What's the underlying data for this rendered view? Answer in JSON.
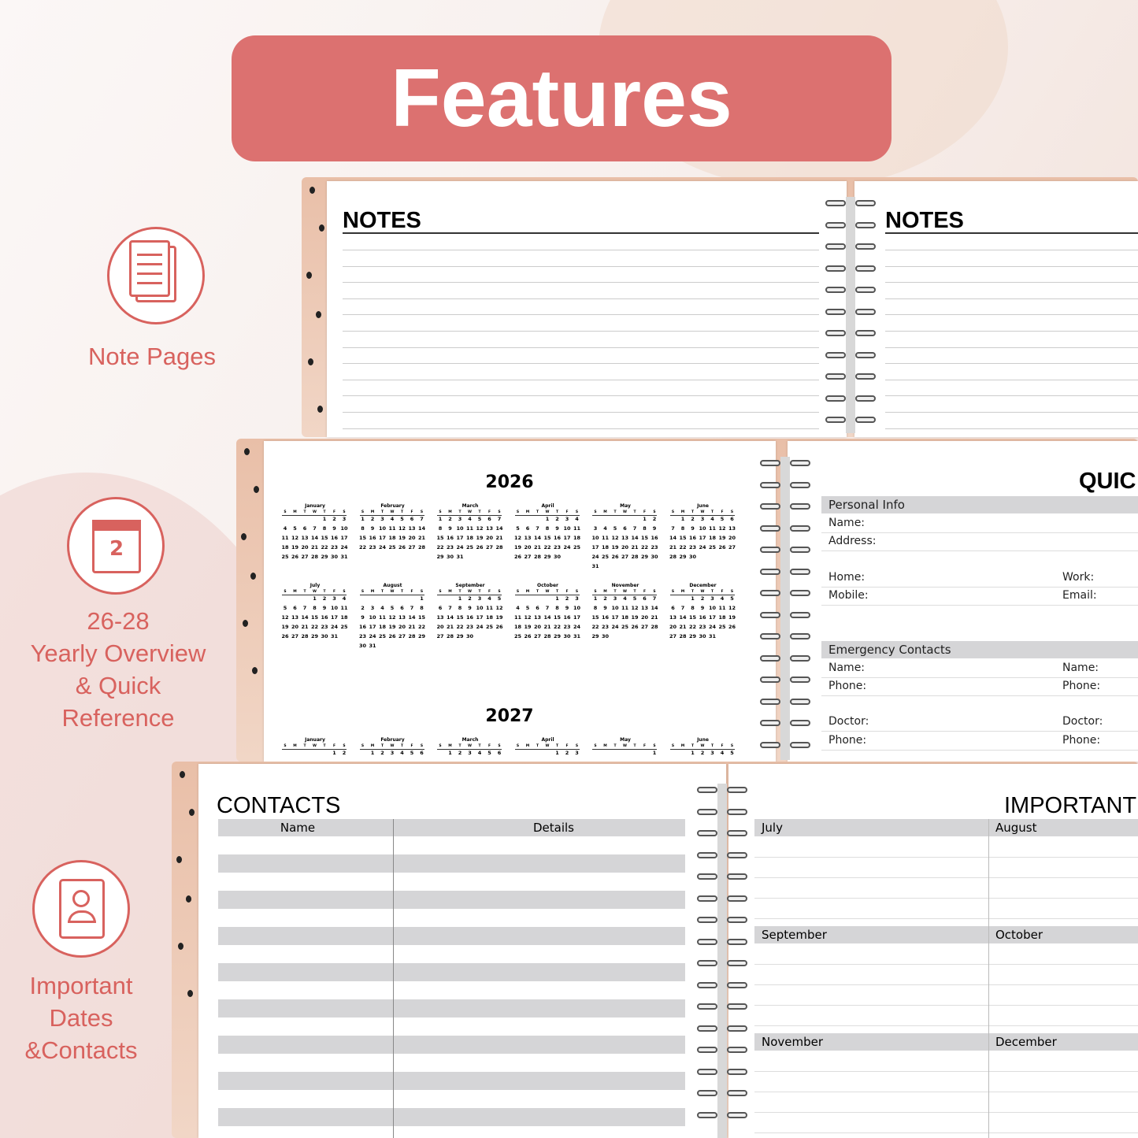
{
  "header": {
    "title": "Features"
  },
  "features": [
    {
      "label": [
        "Note Pages"
      ]
    },
    {
      "label": [
        "26-28",
        "Yearly Overview",
        "& Quick",
        "Reference"
      ],
      "icon_text": "2"
    },
    {
      "label": [
        "Important",
        "Dates",
        "&Contacts"
      ]
    }
  ],
  "notes_spread": {
    "left_title": "NOTES",
    "right_title": "NOTES"
  },
  "yearly": {
    "weekdays": [
      "S",
      "M",
      "T",
      "W",
      "T",
      "F",
      "S"
    ],
    "years": [
      {
        "year": 2026,
        "months": [
          {
            "name": "January",
            "days": [
              null,
              null,
              null,
              null,
              1,
              2,
              3,
              4,
              5,
              6,
              7,
              8,
              9,
              10,
              11,
              12,
              13,
              14,
              15,
              16,
              17,
              18,
              19,
              20,
              21,
              22,
              23,
              24,
              25,
              26,
              27,
              28,
              29,
              30,
              31
            ]
          },
          {
            "name": "February",
            "days": [
              1,
              2,
              3,
              4,
              5,
              6,
              7,
              8,
              9,
              10,
              11,
              12,
              13,
              14,
              15,
              16,
              17,
              18,
              19,
              20,
              21,
              22,
              23,
              24,
              25,
              26,
              27,
              28
            ]
          },
          {
            "name": "March",
            "days": [
              1,
              2,
              3,
              4,
              5,
              6,
              7,
              8,
              9,
              10,
              11,
              12,
              13,
              14,
              15,
              16,
              17,
              18,
              19,
              20,
              21,
              22,
              23,
              24,
              25,
              26,
              27,
              28,
              29,
              30,
              31
            ]
          },
          {
            "name": "April",
            "days": [
              null,
              null,
              null,
              1,
              2,
              3,
              4,
              5,
              6,
              7,
              8,
              9,
              10,
              11,
              12,
              13,
              14,
              15,
              16,
              17,
              18,
              19,
              20,
              21,
              22,
              23,
              24,
              25,
              26,
              27,
              28,
              29,
              30
            ]
          },
          {
            "name": "May",
            "days": [
              null,
              null,
              null,
              null,
              null,
              1,
              2,
              3,
              4,
              5,
              6,
              7,
              8,
              9,
              10,
              11,
              12,
              13,
              14,
              15,
              16,
              17,
              18,
              19,
              20,
              21,
              22,
              23,
              24,
              25,
              26,
              27,
              28,
              29,
              30,
              31
            ]
          },
          {
            "name": "June",
            "days": [
              null,
              1,
              2,
              3,
              4,
              5,
              6,
              7,
              8,
              9,
              10,
              11,
              12,
              13,
              14,
              15,
              16,
              17,
              18,
              19,
              20,
              21,
              22,
              23,
              24,
              25,
              26,
              27,
              28,
              29,
              30
            ]
          },
          {
            "name": "July",
            "days": [
              null,
              null,
              null,
              1,
              2,
              3,
              4,
              5,
              6,
              7,
              8,
              9,
              10,
              11,
              12,
              13,
              14,
              15,
              16,
              17,
              18,
              19,
              20,
              21,
              22,
              23,
              24,
              25,
              26,
              27,
              28,
              29,
              30,
              31
            ]
          },
          {
            "name": "August",
            "days": [
              null,
              null,
              null,
              null,
              null,
              null,
              1,
              2,
              3,
              4,
              5,
              6,
              7,
              8,
              9,
              10,
              11,
              12,
              13,
              14,
              15,
              16,
              17,
              18,
              19,
              20,
              21,
              22,
              23,
              24,
              25,
              26,
              27,
              28,
              29,
              30,
              31
            ]
          },
          {
            "name": "September",
            "days": [
              null,
              null,
              1,
              2,
              3,
              4,
              5,
              6,
              7,
              8,
              9,
              10,
              11,
              12,
              13,
              14,
              15,
              16,
              17,
              18,
              19,
              20,
              21,
              22,
              23,
              24,
              25,
              26,
              27,
              28,
              29,
              30
            ]
          },
          {
            "name": "October",
            "days": [
              null,
              null,
              null,
              null,
              1,
              2,
              3,
              4,
              5,
              6,
              7,
              8,
              9,
              10,
              11,
              12,
              13,
              14,
              15,
              16,
              17,
              18,
              19,
              20,
              21,
              22,
              23,
              24,
              25,
              26,
              27,
              28,
              29,
              30,
              31
            ]
          },
          {
            "name": "November",
            "days": [
              1,
              2,
              3,
              4,
              5,
              6,
              7,
              8,
              9,
              10,
              11,
              12,
              13,
              14,
              15,
              16,
              17,
              18,
              19,
              20,
              21,
              22,
              23,
              24,
              25,
              26,
              27,
              28,
              29,
              30
            ]
          },
          {
            "name": "December",
            "days": [
              null,
              null,
              1,
              2,
              3,
              4,
              5,
              6,
              7,
              8,
              9,
              10,
              11,
              12,
              13,
              14,
              15,
              16,
              17,
              18,
              19,
              20,
              21,
              22,
              23,
              24,
              25,
              26,
              27,
              28,
              29,
              30,
              31
            ]
          }
        ]
      },
      {
        "year": 2027,
        "months": [
          {
            "name": "January",
            "days": [
              null,
              null,
              null,
              null,
              null,
              1,
              2
            ]
          },
          {
            "name": "February",
            "days": [
              null,
              1,
              2,
              3,
              4,
              5,
              6
            ]
          },
          {
            "name": "March",
            "days": [
              null,
              1,
              2,
              3,
              4,
              5,
              6
            ]
          },
          {
            "name": "April",
            "days": [
              null,
              null,
              null,
              null,
              1,
              2,
              3
            ]
          },
          {
            "name": "May",
            "days": [
              null,
              null,
              null,
              null,
              null,
              null,
              1
            ]
          },
          {
            "name": "June",
            "days": [
              null,
              null,
              1,
              2,
              3,
              4,
              5
            ]
          }
        ]
      }
    ]
  },
  "quick_reference": {
    "title": "QUIC",
    "personal_info": {
      "heading": "Personal Info",
      "rows": [
        [
          "Name:"
        ],
        [
          "Address:"
        ],
        [
          "Home:",
          "Work:"
        ],
        [
          "Mobile:",
          "Email:"
        ]
      ]
    },
    "emergency_contacts": {
      "heading": "Emergency Contacts",
      "rows": [
        [
          "Name:",
          "Name:"
        ],
        [
          "Phone:",
          "Phone:"
        ],
        [
          "Doctor:",
          "Doctor:"
        ],
        [
          "Phone:",
          "Phone:"
        ]
      ]
    }
  },
  "contacts": {
    "title": "CONTACTS",
    "columns": [
      "Name",
      "Details"
    ]
  },
  "important_dates": {
    "title": "IMPORTANT",
    "months": [
      "July",
      "August",
      "September",
      "October",
      "November",
      "December"
    ]
  }
}
